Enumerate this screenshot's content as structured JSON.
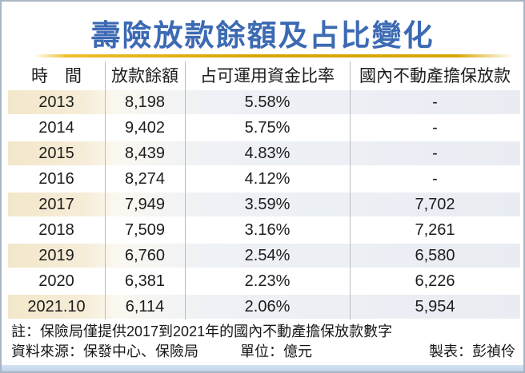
{
  "title": "壽險放款餘額及占比變化",
  "chart_data": {
    "type": "table",
    "title": "壽險放款餘額及占比變化",
    "unit": "億元",
    "columns": [
      "時間",
      "放款餘額",
      "占可運用資金比率",
      "國內不動產擔保放款"
    ],
    "header_display": [
      "時　間",
      "放款餘額",
      "占可運用資金比率",
      "國內不動產擔保放款"
    ],
    "rows": [
      [
        "2013",
        "8,198",
        "5.58%",
        "-"
      ],
      [
        "2014",
        "9,402",
        "5.75%",
        "-"
      ],
      [
        "2015",
        "8,439",
        "4.83%",
        "-"
      ],
      [
        "2016",
        "8,274",
        "4.12%",
        "-"
      ],
      [
        "2017",
        "7,949",
        "3.59%",
        "7,702"
      ],
      [
        "2018",
        "7,509",
        "3.16%",
        "7,261"
      ],
      [
        "2019",
        "6,760",
        "2.54%",
        "6,580"
      ],
      [
        "2020",
        "6,381",
        "2.23%",
        "6,226"
      ],
      [
        "2021.10",
        "6,114",
        "2.06%",
        "5,954"
      ]
    ]
  },
  "notes": {
    "note": "註：保險局僅提供2017到2021年的國內不動產擔保放款數字",
    "source": "資料來源：保發中心、保險局",
    "unit_label": "單位：億元",
    "credit": "製表：彭禎伶"
  },
  "colors": {
    "title_blue": "#3c6ab3",
    "gold_rule": "#d9a604",
    "stripe_cream": "#f3e7ca",
    "stripe_bluegray": "#e9edf3",
    "bottom_bar_blue": "#bfd4ec",
    "frame_border": "#a9b5c2"
  }
}
